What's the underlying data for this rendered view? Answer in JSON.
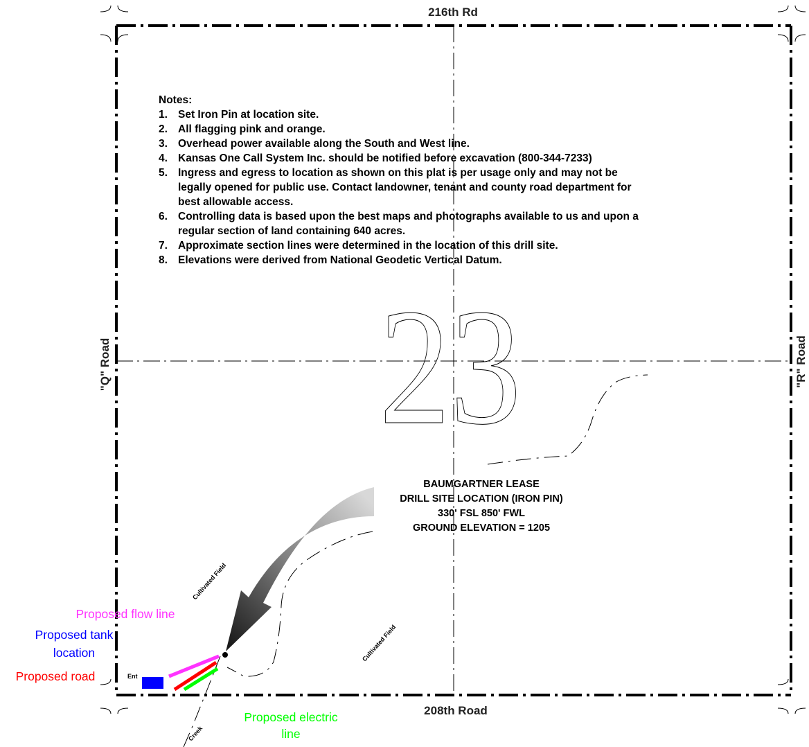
{
  "roads": {
    "north": "216th Rd",
    "south": "208th Road",
    "west": "\"Q\" Road",
    "east": "\"R\" Road"
  },
  "section_number": "23",
  "notes": {
    "heading": "Notes:",
    "items": [
      {
        "num": "1.",
        "lines": [
          "Set Iron Pin at location site."
        ]
      },
      {
        "num": "2.",
        "lines": [
          "All flagging pink and orange."
        ]
      },
      {
        "num": "3.",
        "lines": [
          "Overhead power available along the South and West line."
        ]
      },
      {
        "num": "4.",
        "lines": [
          "Kansas One Call System Inc. should be notified before excavation (800-344-7233)"
        ]
      },
      {
        "num": "5.",
        "lines": [
          "Ingress and egress to location as shown on this plat is per usage only and may not be",
          "legally opened for public use.  Contact landowner, tenant and county road department for",
          "best allowable access."
        ]
      },
      {
        "num": "6.",
        "lines": [
          "Controlling data is based upon the best maps and photographs available to us and upon a",
          "regular section of land containing 640 acres."
        ]
      },
      {
        "num": "7.",
        "lines": [
          "Approximate section lines were determined in the location of this drill site."
        ]
      },
      {
        "num": "8.",
        "lines": [
          "Elevations were derived from National Geodetic Vertical Datum."
        ]
      }
    ]
  },
  "drill_site": {
    "line1": "BAUMGARTNER LEASE",
    "line2": "DRILL SITE LOCATION (IRON PIN)",
    "line3": "330' FSL  850' FWL",
    "line4": "GROUND ELEVATION = 1205"
  },
  "labels": {
    "cultivated_field_1": "Cultivated Field",
    "cultivated_field_2": "Cultivated Field",
    "creek": "Creek",
    "entrance": "Ent"
  },
  "legend": {
    "flow_line": "Proposed flow line",
    "tank_line1": "Proposed tank",
    "tank_line2": "location",
    "road": "Proposed road",
    "electric_line1": "Proposed electric",
    "electric_line2": "line"
  },
  "colors": {
    "flow_line": "#ff33ff",
    "tank": "#0000ff",
    "road": "#ff0000",
    "electric": "#00ff00"
  }
}
